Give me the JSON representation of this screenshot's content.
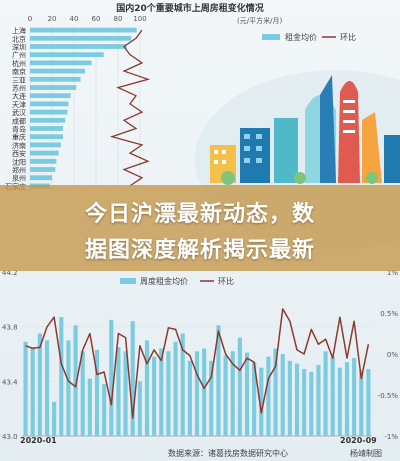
{
  "headline": {
    "line1": "今日沪漂最新动态，数",
    "line2": "据图深度解析揭示最新"
  },
  "colors": {
    "bar": "#7ccbe0",
    "line": "#8b3a2e",
    "grid": "#d6dde2",
    "text": "#444444",
    "overlay": "#c49646"
  },
  "chart_data": [
    {
      "type": "bar",
      "orientation": "horizontal",
      "title": "国内20个重要城市上周房租变化情况",
      "unit_label": "(元/平方米/月)",
      "x_ticks": [
        "0",
        "20",
        "40",
        "60",
        "80",
        "100"
      ],
      "xlim": [
        0,
        100
      ],
      "categories": [
        "上海",
        "北京",
        "深圳",
        "广州",
        "杭州",
        "南京",
        "三亚",
        "苏州",
        "大连",
        "天津",
        "武汉",
        "成都",
        "青岛",
        "重庆",
        "济南",
        "西安",
        "沈阳",
        "郑州",
        "泉州",
        "石家庄"
      ],
      "series": [
        {
          "name": "租金均价",
          "values": [
            97,
            92,
            88,
            67,
            56,
            50,
            46,
            42,
            37,
            35,
            34,
            32,
            30,
            30,
            28,
            26,
            24,
            23,
            20,
            18
          ]
        },
        {
          "name": "环比",
          "values": [
            0.2,
            0.1,
            -0.1,
            0.0,
            0.2,
            -0.1,
            0.3,
            -0.2,
            0.1,
            0.0,
            0.2,
            -0.1,
            0.1,
            -0.3,
            0.2,
            0.0,
            0.3,
            -0.1,
            0.2,
            0.0
          ]
        }
      ],
      "legend": [
        "租金均价",
        "环比"
      ],
      "legend_position": "top-right"
    },
    {
      "type": "bar+line",
      "y_ticks": [
        "44.2",
        "43.8",
        "43.4",
        "43.0"
      ],
      "ylim": [
        43.0,
        44.2
      ],
      "y2_ticks": [
        "1",
        "0.5",
        "0",
        "-0.5",
        "-1"
      ],
      "y2lim": [
        -1,
        1
      ],
      "y2_unit": "%",
      "x_labels_shown": [
        "2020-01",
        "2020-09"
      ],
      "legend": [
        "周度租金均价",
        "环比"
      ],
      "legend_position": "top-center",
      "series": [
        {
          "name": "周度租金均价",
          "values": [
            43.69,
            43.65,
            43.75,
            43.7,
            43.25,
            43.87,
            43.7,
            43.81,
            43.62,
            43.42,
            43.63,
            43.38,
            43.85,
            43.65,
            43.62,
            43.84,
            43.4,
            43.7,
            43.58,
            43.64,
            43.62,
            43.69,
            43.75,
            43.55,
            43.62,
            43.64,
            43.55,
            43.81,
            43.59,
            43.62,
            43.72,
            43.61,
            43.54,
            43.5,
            43.58,
            43.64,
            43.6,
            43.55,
            43.53,
            43.49,
            43.47,
            43.52,
            43.62,
            43.58,
            43.5,
            43.54,
            43.57,
            43.48,
            43.49
          ]
        },
        {
          "name": "环比",
          "values": [
            0.1,
            0.07,
            0.08,
            0.33,
            0.45,
            -0.12,
            -0.33,
            -0.4,
            0.05,
            0.25,
            -0.25,
            -0.22,
            -0.62,
            0.25,
            0.2,
            -0.78,
            0.1,
            -0.12,
            0.05,
            -0.08,
            0.32,
            0.3,
            0.05,
            -0.02,
            -0.25,
            -0.42,
            -0.28,
            0.28,
            0.0,
            -0.12,
            -0.2,
            -0.05,
            -0.1,
            -0.72,
            -0.3,
            -0.15,
            0.55,
            0.4,
            0.05,
            0.0,
            0.3,
            0.12,
            0.18,
            -0.05,
            0.45,
            -0.05,
            0.4,
            -0.3,
            0.12
          ]
        }
      ]
    }
  ],
  "source_note": "数据来源：诸葛找房数据研究中心",
  "author_note": "杨靖制图"
}
